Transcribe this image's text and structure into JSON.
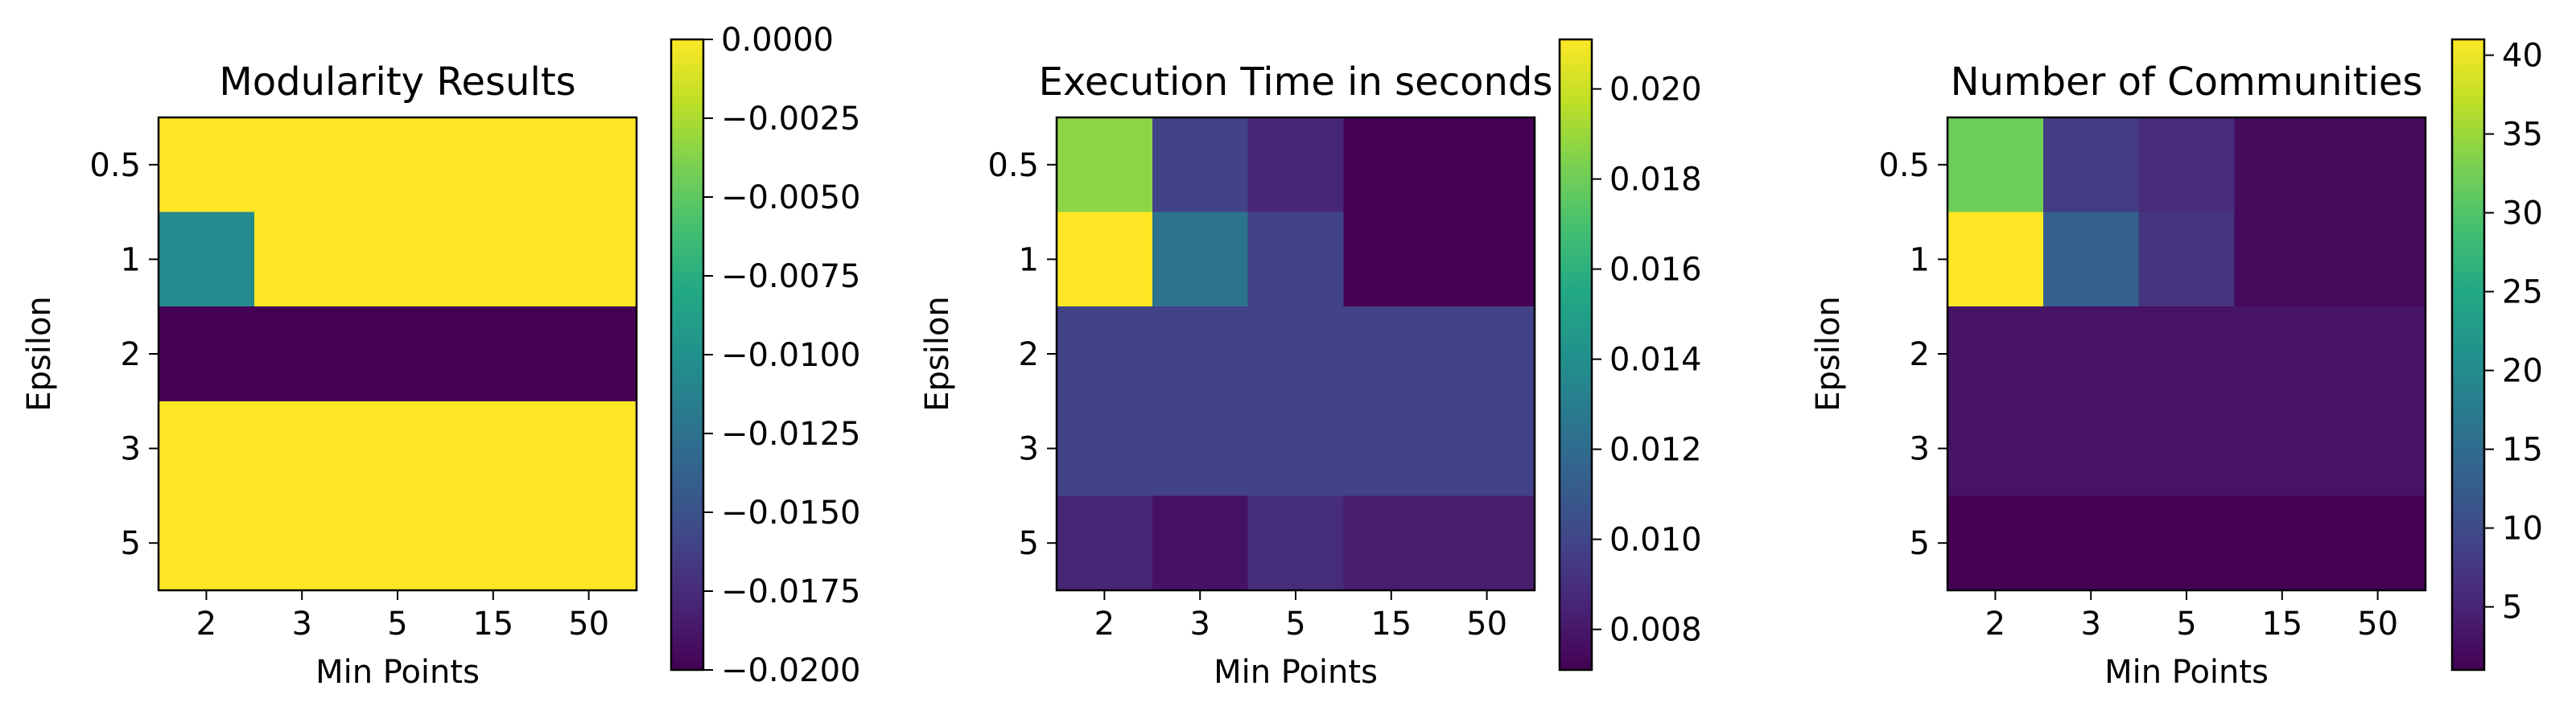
{
  "colormap": "viridis",
  "chart_data": [
    {
      "type": "heatmap",
      "title": "Modularity Results",
      "xlabel": "Min Points",
      "ylabel": "Epsilon",
      "x_categories": [
        "2",
        "3",
        "5",
        "15",
        "50"
      ],
      "y_categories": [
        "0.5",
        "1",
        "2",
        "3",
        "5"
      ],
      "values": [
        [
          0.0,
          0.0,
          0.0,
          0.0,
          0.0
        ],
        [
          -0.0105,
          0.0,
          0.0,
          0.0,
          0.0
        ],
        [
          -0.02,
          -0.02,
          -0.02,
          -0.02,
          -0.02
        ],
        [
          0.0,
          0.0,
          0.0,
          0.0,
          0.0
        ],
        [
          0.0,
          0.0,
          0.0,
          0.0,
          0.0
        ]
      ],
      "colorbar": {
        "vmin": -0.02,
        "vmax": 0.0,
        "ticks": [
          0.0,
          -0.0025,
          -0.005,
          -0.0075,
          -0.01,
          -0.0125,
          -0.015,
          -0.0175,
          -0.02
        ],
        "tick_labels": [
          "0.0000",
          "−0.0025",
          "−0.0050",
          "−0.0075",
          "−0.0100",
          "−0.0125",
          "−0.0150",
          "−0.0175",
          "−0.0200"
        ]
      }
    },
    {
      "type": "heatmap",
      "title": "Execution Time in seconds",
      "xlabel": "Min Points",
      "ylabel": "Epsilon",
      "x_categories": [
        "2",
        "3",
        "5",
        "15",
        "50"
      ],
      "y_categories": [
        "0.5",
        "1",
        "2",
        "3",
        "5"
      ],
      "values": [
        [
          0.0187,
          0.0098,
          0.0086,
          0.0071,
          0.0071
        ],
        [
          0.0211,
          0.0124,
          0.0098,
          0.0071,
          0.0071
        ],
        [
          0.0098,
          0.0098,
          0.0098,
          0.0098,
          0.0098
        ],
        [
          0.0098,
          0.0098,
          0.0098,
          0.0098,
          0.0098
        ],
        [
          0.0086,
          0.0078,
          0.0089,
          0.0082,
          0.0082
        ]
      ],
      "colorbar": {
        "vmin": 0.0071,
        "vmax": 0.0211,
        "ticks": [
          0.02,
          0.018,
          0.016,
          0.014,
          0.012,
          0.01,
          0.008
        ],
        "tick_labels": [
          "0.020",
          "0.018",
          "0.016",
          "0.014",
          "0.012",
          "0.010",
          "0.008"
        ]
      }
    },
    {
      "type": "heatmap",
      "title": "Number of Communities",
      "xlabel": "Min Points",
      "ylabel": "Epsilon",
      "x_categories": [
        "2",
        "3",
        "5",
        "15",
        "50"
      ],
      "y_categories": [
        "0.5",
        "1",
        "2",
        "3",
        "5"
      ],
      "values": [
        [
          32,
          8,
          6,
          2,
          2
        ],
        [
          41,
          13,
          7,
          2,
          2
        ],
        [
          3,
          3,
          3,
          3,
          3
        ],
        [
          3,
          3,
          3,
          3,
          3
        ],
        [
          1,
          1,
          1,
          1,
          1
        ]
      ],
      "colorbar": {
        "vmin": 1,
        "vmax": 41,
        "ticks": [
          40,
          35,
          30,
          25,
          20,
          15,
          10,
          5
        ],
        "tick_labels": [
          "40",
          "35",
          "30",
          "25",
          "20",
          "15",
          "10",
          "5"
        ]
      }
    }
  ]
}
